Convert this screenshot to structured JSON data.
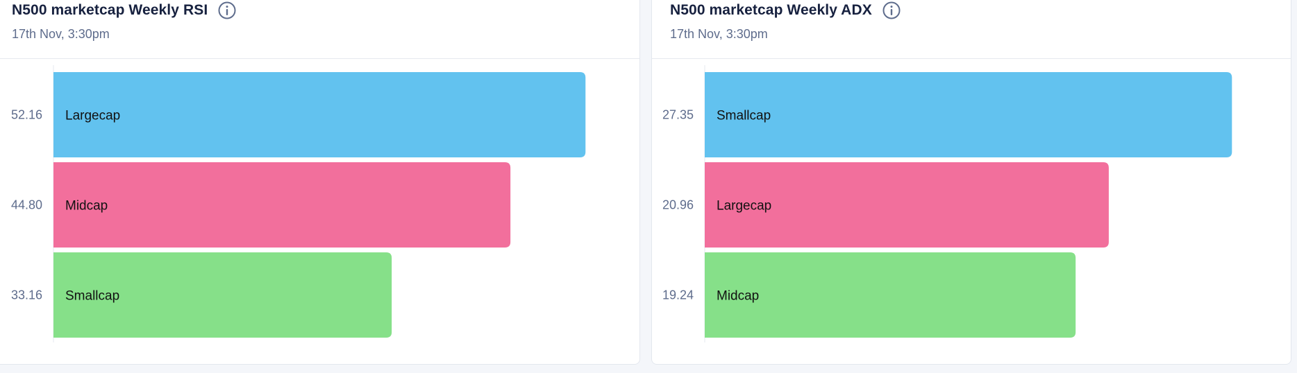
{
  "colors": {
    "blue": "#62c2ef",
    "pink": "#f26f9c",
    "green": "#86e089"
  },
  "cards": [
    {
      "title": "N500 marketcap Weekly RSI",
      "subtitle": "17th Nov, 3:30pm",
      "icon": "info-icon"
    },
    {
      "title": "N500 marketcap Weekly ADX",
      "subtitle": "17th Nov, 3:30pm",
      "icon": "info-icon"
    }
  ],
  "chart_data": [
    {
      "type": "bar",
      "orientation": "horizontal",
      "categories": [
        "Largecap",
        "Midcap",
        "Smallcap"
      ],
      "values": [
        52.16,
        44.8,
        33.16
      ],
      "value_labels": [
        "52.16",
        "44.80",
        "33.16"
      ],
      "colors": [
        "#62c2ef",
        "#f26f9c",
        "#86e089"
      ],
      "xlim": [
        0,
        55
      ]
    },
    {
      "type": "bar",
      "orientation": "horizontal",
      "categories": [
        "Smallcap",
        "Largecap",
        "Midcap"
      ],
      "values": [
        27.35,
        20.96,
        19.24
      ],
      "value_labels": [
        "27.35",
        "20.96",
        "19.24"
      ],
      "colors": [
        "#62c2ef",
        "#f26f9c",
        "#86e089"
      ],
      "xlim": [
        0,
        29.5
      ]
    }
  ]
}
